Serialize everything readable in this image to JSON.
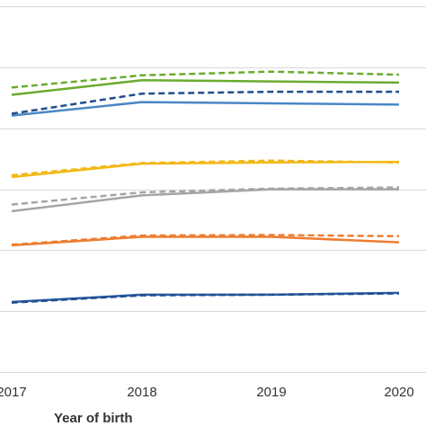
{
  "chart_data": {
    "type": "line",
    "x": [
      "2017",
      "2018",
      "2019",
      "2020"
    ],
    "xlabel": "Year of birth",
    "ylabel": "",
    "ylim": [
      0,
      6
    ],
    "gridlines": [
      1,
      2,
      3,
      4,
      5,
      6
    ],
    "grid": true,
    "legend": "none",
    "series": [
      {
        "color": "#6aab2f",
        "dash": false,
        "values": [
          4.55,
          4.79,
          4.77,
          4.75
        ]
      },
      {
        "color": "#6aab2f",
        "dash": true,
        "values": [
          4.67,
          4.87,
          4.93,
          4.88
        ]
      },
      {
        "color": "#4a86c5",
        "dash": false,
        "values": [
          4.21,
          4.43,
          4.41,
          4.39
        ]
      },
      {
        "color": "#1f4e8c",
        "dash": true,
        "values": [
          4.24,
          4.57,
          4.6,
          4.6
        ]
      },
      {
        "color": "#f2b817",
        "dash": false,
        "values": [
          3.2,
          3.42,
          3.44,
          3.45
        ]
      },
      {
        "color": "#f2b817",
        "dash": true,
        "values": [
          3.23,
          3.43,
          3.47,
          3.44
        ]
      },
      {
        "color": "#a5a5a5",
        "dash": false,
        "values": [
          2.64,
          2.9,
          3.0,
          3.0
        ]
      },
      {
        "color": "#a5a5a5",
        "dash": true,
        "values": [
          2.75,
          2.95,
          3.01,
          3.03
        ]
      },
      {
        "color": "#ed7d31",
        "dash": false,
        "values": [
          2.08,
          2.22,
          2.22,
          2.13
        ]
      },
      {
        "color": "#ed7d31",
        "dash": true,
        "values": [
          2.09,
          2.24,
          2.25,
          2.23
        ]
      },
      {
        "color": "#2e5ea8",
        "dash": false,
        "values": [
          1.15,
          1.27,
          1.27,
          1.3
        ]
      },
      {
        "color": "#1f4e8c",
        "dash": true,
        "values": [
          1.14,
          1.26,
          1.27,
          1.29
        ]
      }
    ]
  }
}
